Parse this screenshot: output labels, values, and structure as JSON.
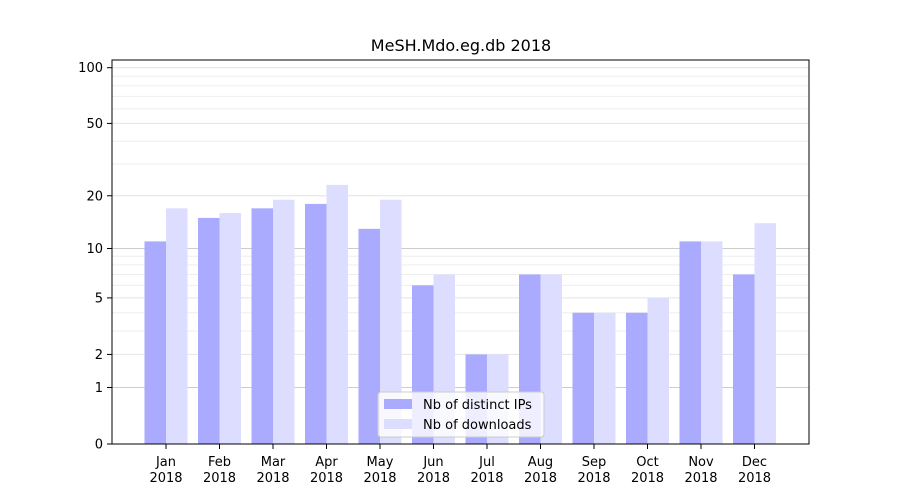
{
  "chart_data": {
    "type": "bar",
    "title": "MeSH.Mdo.eg.db 2018",
    "xlabel": "",
    "ylabel": "",
    "categories": [
      [
        "Jan",
        "2018"
      ],
      [
        "Feb",
        "2018"
      ],
      [
        "Mar",
        "2018"
      ],
      [
        "Apr",
        "2018"
      ],
      [
        "May",
        "2018"
      ],
      [
        "Jun",
        "2018"
      ],
      [
        "Jul",
        "2018"
      ],
      [
        "Aug",
        "2018"
      ],
      [
        "Sep",
        "2018"
      ],
      [
        "Oct",
        "2018"
      ],
      [
        "Nov",
        "2018"
      ],
      [
        "Dec",
        "2018"
      ]
    ],
    "series": [
      {
        "name": "Nb of distinct IPs",
        "color": "#aaaaff",
        "values": [
          11,
          15,
          17,
          18,
          13,
          6,
          2,
          7,
          4,
          4,
          11,
          7
        ]
      },
      {
        "name": "Nb of downloads",
        "color": "#ddddff",
        "values": [
          17,
          16,
          19,
          23,
          19,
          7,
          2,
          7,
          4,
          5,
          11,
          14
        ]
      }
    ],
    "y_scale": "log(1+y)",
    "y_ticks": [
      0,
      1,
      2,
      5,
      10,
      20,
      50,
      100
    ],
    "ylim": [
      0,
      110
    ],
    "grid": "horizontal",
    "legend": "bottom-center"
  }
}
